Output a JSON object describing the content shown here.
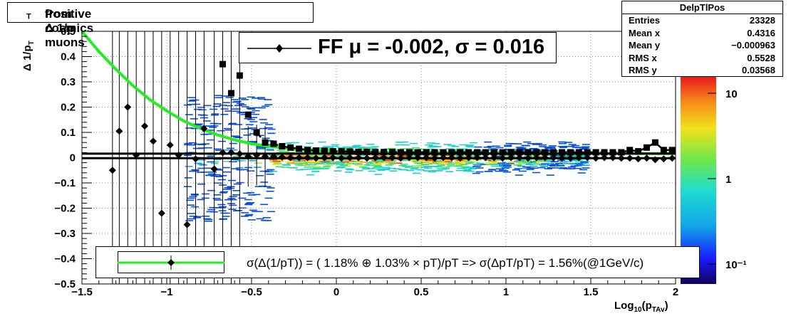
{
  "title": "Positive Δ 1/p",
  "title_sub": "T",
  "title_suffix": " from cosmics muons",
  "stats": {
    "name": "DelpTlPos",
    "rows": [
      {
        "label": "Entries",
        "value": "23328"
      },
      {
        "label": "Mean x",
        "value": "0.4316"
      },
      {
        "label": "Mean y",
        "value": "−0.000963"
      },
      {
        "label": "RMS x",
        "value": "0.5528"
      },
      {
        "label": "RMS y",
        "value": "0.03568"
      }
    ]
  },
  "fit_label": "FF μ = -0.002, σ =   0.016",
  "legend_text": "σ(Δ(1/pT)) = ( 1.18% ⊕  1.03% × pT)/pT => σ(ΔpT/pT) =  1.56%(@1GeV/c)",
  "ylabel_main": "Δ 1/p",
  "ylabel_sub": "T",
  "xlabel_main": "Log",
  "xlabel_sub1": "10",
  "xlabel_mid": "(p",
  "xlabel_sub2": "TAv",
  "xlabel_end": ")",
  "colors": {
    "fit_curve": "#22ee22",
    "markers": "#000000",
    "grid": "#888888"
  },
  "chart_data": {
    "type": "scatter",
    "xlim": [
      -1.5,
      2
    ],
    "ylim": [
      -0.5,
      0.5
    ],
    "grid": true,
    "x_ticks": [
      "−1.5",
      "−1",
      "−0.5",
      "0",
      "0.5",
      "1",
      "1.5",
      "2"
    ],
    "x_tick_values": [
      -1.5,
      -1,
      -0.5,
      0,
      0.5,
      1,
      1.5,
      2
    ],
    "y_ticks": [
      "0.5",
      "0.4",
      "0.3",
      "0.2",
      "0.1",
      "0",
      "−0.1",
      "−0.2",
      "−0.3",
      "−0.4",
      "−0.5"
    ],
    "y_tick_values": [
      0.5,
      0.4,
      0.3,
      0.2,
      0.1,
      0,
      -0.1,
      -0.2,
      -0.3,
      -0.4,
      -0.5
    ],
    "z_scale": "log",
    "z_ticks": [
      "10",
      "1",
      "10⁻¹"
    ],
    "z_tick_values": [
      10,
      1,
      0.1
    ],
    "series": [
      {
        "marker": "diamond",
        "x": [
          -1.32,
          -1.28,
          -1.23,
          -1.18,
          -1.13,
          -1.08,
          -1.03,
          -0.98,
          -0.93,
          -0.88,
          -0.83,
          -0.78,
          -0.72,
          -0.67,
          -0.62,
          -0.57,
          -0.52,
          -0.47,
          -0.42,
          -0.37,
          -0.32,
          -0.27,
          -0.22,
          -0.17,
          -0.12,
          -0.07,
          -0.02,
          0.03,
          0.08,
          0.13,
          0.18,
          0.23,
          0.28,
          0.33,
          0.38,
          0.43,
          0.48,
          0.53,
          0.58,
          0.63,
          0.68,
          0.73,
          0.78,
          0.83,
          0.88,
          0.93,
          0.98,
          1.03,
          1.08,
          1.13,
          1.18,
          1.23,
          1.28,
          1.33,
          1.38,
          1.43,
          1.48,
          1.53,
          1.58,
          1.63,
          1.68,
          1.73,
          1.78,
          1.83,
          1.88,
          1.93,
          1.98
        ],
        "y": [
          -0.05,
          0.105,
          0.2,
          0.01,
          0.125,
          0.065,
          -0.22,
          0.05,
          0.01,
          -0.265,
          -0.005,
          0.115,
          -0.045,
          0.02,
          0.02,
          0.015,
          0.005,
          0.01,
          0.005,
          0.005,
          0.002,
          0.0,
          0.0,
          0.0,
          -0.002,
          0.0,
          0.0,
          -0.002,
          0.0,
          0.0,
          -0.002,
          0.0,
          0.0,
          0.0,
          -0.002,
          0.0,
          0.0,
          0.0,
          -0.002,
          0.0,
          0.0,
          -0.002,
          0.0,
          0.0,
          0.0,
          0.0,
          -0.002,
          0.0,
          0.0,
          -0.002,
          0.0,
          0.0,
          0.0,
          -0.002,
          -0.002,
          0.0,
          0.0,
          -0.002,
          0.0,
          0.0,
          -0.002,
          -0.002,
          -0.005,
          -0.002,
          -0.008,
          -0.005,
          -0.002
        ]
      },
      {
        "marker": "square",
        "x": [
          -0.67,
          -0.62,
          -0.57,
          -0.52,
          -0.47,
          -0.42,
          -0.37,
          -0.32,
          -0.27,
          -0.22,
          -0.17,
          -0.12,
          -0.07,
          -0.02,
          0.03,
          0.08,
          0.13,
          0.18,
          0.23,
          0.28,
          0.33,
          0.38,
          0.43,
          0.48,
          0.53,
          0.58,
          0.63,
          0.68,
          0.73,
          0.78,
          0.83,
          0.88,
          0.93,
          0.98,
          1.03,
          1.08,
          1.13,
          1.18,
          1.23,
          1.28,
          1.33,
          1.38,
          1.43,
          1.48,
          1.53,
          1.58,
          1.63,
          1.68,
          1.73,
          1.78,
          1.83,
          1.88,
          1.93,
          1.98
        ],
        "y": [
          0.37,
          0.255,
          0.325,
          0.17,
          0.1,
          0.06,
          0.055,
          0.045,
          0.04,
          0.035,
          0.03,
          0.028,
          0.027,
          0.025,
          0.025,
          0.024,
          0.023,
          0.023,
          0.022,
          0.022,
          0.022,
          0.021,
          0.021,
          0.021,
          0.021,
          0.021,
          0.021,
          0.021,
          0.021,
          0.021,
          0.021,
          0.021,
          0.021,
          0.021,
          0.021,
          0.021,
          0.021,
          0.021,
          0.021,
          0.021,
          0.021,
          0.021,
          0.021,
          0.021,
          0.021,
          0.021,
          0.021,
          0.021,
          0.03,
          0.025,
          0.04,
          0.06,
          0.03,
          0.03
        ]
      }
    ],
    "fit_curve": {
      "x": [
        -1.5,
        -1.4,
        -1.3,
        -1.2,
        -1.1,
        -1.0,
        -0.9,
        -0.8,
        -0.7,
        -0.6,
        -0.5,
        -0.4,
        -0.3,
        -0.2,
        -0.1,
        0.0,
        0.2,
        0.5,
        1.0,
        1.5,
        2.0
      ],
      "y": [
        0.5,
        0.42,
        0.35,
        0.285,
        0.23,
        0.185,
        0.145,
        0.115,
        0.09,
        0.07,
        0.055,
        0.045,
        0.038,
        0.032,
        0.028,
        0.025,
        0.022,
        0.02,
        0.018,
        0.017,
        0.016
      ]
    },
    "mean_line_y": -0.002,
    "upper_line_y": 0.016
  }
}
